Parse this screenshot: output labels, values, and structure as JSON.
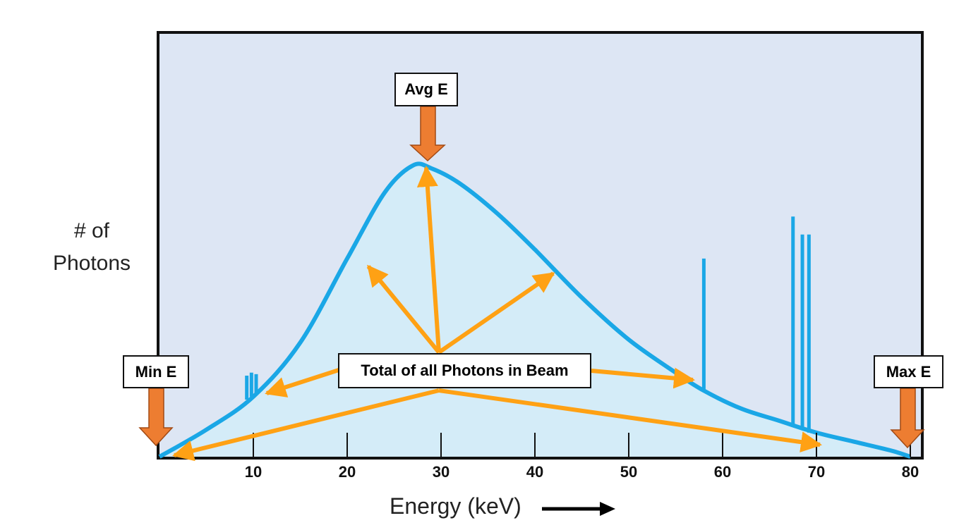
{
  "y_axis_label": [
    "# of",
    "Photons"
  ],
  "x_axis_label": "Energy (keV)",
  "annotations": {
    "avg": "Avg E",
    "min": "Min E",
    "max": "Max E",
    "total": "Total of all Photons in Beam"
  },
  "x_ticks": [
    "10",
    "20",
    "30",
    "40",
    "50",
    "60",
    "70",
    "80"
  ],
  "chart_data": {
    "type": "area",
    "title": "",
    "xlabel": "Energy (keV)",
    "ylabel": "# of Photons",
    "xlim": [
      0,
      80
    ],
    "ylim": [
      0,
      100
    ],
    "spectrum": {
      "x": [
        0,
        5,
        10,
        15,
        20,
        24,
        27,
        29,
        32,
        36,
        40,
        45,
        50,
        55,
        58,
        62,
        66,
        70,
        74,
        78,
        80
      ],
      "y": [
        0,
        9,
        20,
        38,
        66,
        88,
        97,
        96,
        91,
        81,
        69,
        53,
        39,
        28,
        22,
        16,
        12,
        8,
        5,
        2,
        0
      ]
    },
    "characteristic_lines": [
      {
        "x": 9.3,
        "top": 27,
        "base": 19
      },
      {
        "x": 9.8,
        "top": 28,
        "base": 20
      },
      {
        "x": 10.3,
        "top": 27.5,
        "base": 21
      },
      {
        "x": 58,
        "top": 66,
        "base": 22
      },
      {
        "x": 67.5,
        "top": 80,
        "base": 10
      },
      {
        "x": 68.5,
        "top": 74,
        "base": 9
      },
      {
        "x": 69.2,
        "top": 74,
        "base": 8
      }
    ],
    "colors": {
      "curve": "#1aa7e6",
      "fill": "#d4ecf8",
      "plot_bg": "#dde6f4",
      "orange_arrow": "#ffa114",
      "marker_arrow": "#ed7d31"
    }
  }
}
